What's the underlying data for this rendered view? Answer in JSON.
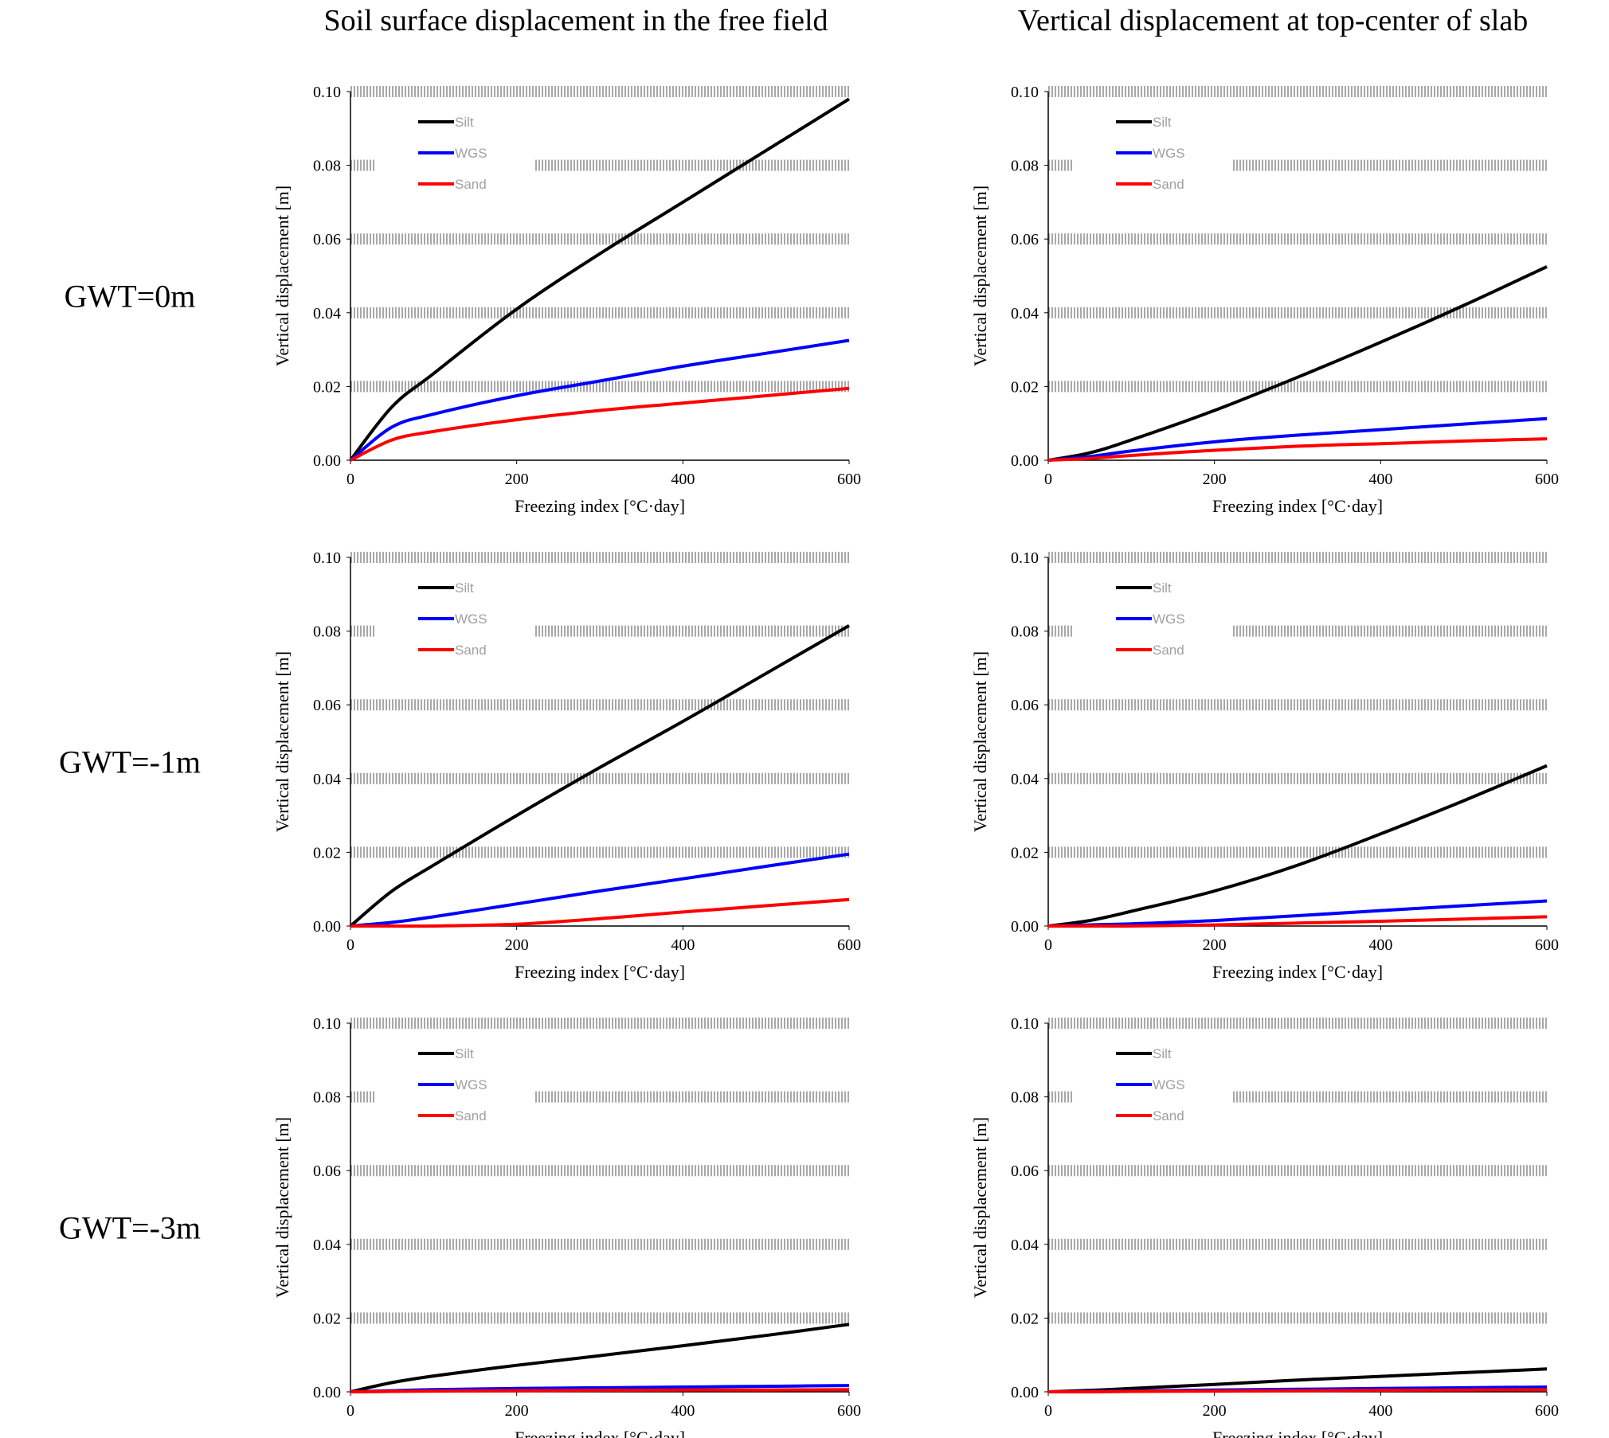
{
  "column_titles": [
    "Soil surface displacement in the free field",
    "Vertical displacement at top-center of slab"
  ],
  "row_labels": [
    "GWT=0m",
    "GWT=-1m",
    "GWT=-3m"
  ],
  "colors": {
    "Silt": "#000000",
    "WGS": "#0000ff",
    "Sand": "#ff0000",
    "grid": "#bdbdbd"
  },
  "chart_data": [
    {
      "type": "line",
      "panel": "GWT=0m / free field",
      "xlabel": "Freezing index [°C·day]",
      "ylabel": "Vertical displacement [m]",
      "xlim": [
        0,
        600
      ],
      "ylim": [
        0,
        0.1
      ],
      "xticks": [
        "0",
        "200",
        "400",
        "600"
      ],
      "yticks": [
        "0.00",
        "0.02",
        "0.04",
        "0.06",
        "0.08",
        "0.10"
      ],
      "grid": "horizontal",
      "legend_position": "top-left",
      "x": [
        0,
        50,
        100,
        200,
        300,
        400,
        500,
        600
      ],
      "series": [
        {
          "name": "Silt",
          "values": [
            0,
            0.0145,
            0.0235,
            0.041,
            0.056,
            0.07,
            0.084,
            0.098
          ]
        },
        {
          "name": "WGS",
          "values": [
            0,
            0.009,
            0.0125,
            0.0175,
            0.0215,
            0.0255,
            0.029,
            0.0325
          ]
        },
        {
          "name": "Sand",
          "values": [
            0,
            0.0055,
            0.0078,
            0.011,
            0.0135,
            0.0155,
            0.0175,
            0.0195
          ]
        }
      ]
    },
    {
      "type": "line",
      "panel": "GWT=0m / slab",
      "xlabel": "Freezing index [°C·day]",
      "ylabel": "Vertical displacement [m]",
      "xlim": [
        0,
        600
      ],
      "ylim": [
        0,
        0.1
      ],
      "xticks": [
        "0",
        "200",
        "400",
        "600"
      ],
      "yticks": [
        "0.00",
        "0.02",
        "0.04",
        "0.06",
        "0.08",
        "0.10"
      ],
      "grid": "horizontal",
      "legend_position": "top-left",
      "x": [
        0,
        50,
        100,
        200,
        300,
        400,
        500,
        600
      ],
      "series": [
        {
          "name": "Silt",
          "values": [
            0,
            0.002,
            0.0055,
            0.0135,
            0.0225,
            0.032,
            0.042,
            0.0525
          ]
        },
        {
          "name": "WGS",
          "values": [
            0,
            0.001,
            0.0025,
            0.005,
            0.0068,
            0.0083,
            0.0098,
            0.0113
          ]
        },
        {
          "name": "Sand",
          "values": [
            0,
            0.0005,
            0.0013,
            0.0027,
            0.0038,
            0.0045,
            0.0052,
            0.0058
          ]
        }
      ]
    },
    {
      "type": "line",
      "panel": "GWT=-1m / free field",
      "xlabel": "Freezing index [°C·day]",
      "ylabel": "Vertical displacement [m]",
      "xlim": [
        0,
        600
      ],
      "ylim": [
        0,
        0.1
      ],
      "xticks": [
        "0",
        "200",
        "400",
        "600"
      ],
      "yticks": [
        "0.00",
        "0.02",
        "0.04",
        "0.06",
        "0.08",
        "0.10"
      ],
      "grid": "horizontal",
      "legend_position": "top-left",
      "x": [
        0,
        50,
        100,
        200,
        300,
        400,
        500,
        600
      ],
      "series": [
        {
          "name": "Silt",
          "values": [
            0,
            0.0095,
            0.0165,
            0.03,
            0.043,
            0.0555,
            0.0685,
            0.0815
          ]
        },
        {
          "name": "WGS",
          "values": [
            0,
            0.001,
            0.0025,
            0.006,
            0.0095,
            0.0128,
            0.0162,
            0.0195
          ]
        },
        {
          "name": "Sand",
          "values": [
            0,
            0,
            0,
            0.0005,
            0.002,
            0.0038,
            0.0055,
            0.0072
          ]
        }
      ]
    },
    {
      "type": "line",
      "panel": "GWT=-1m / slab",
      "xlabel": "Freezing index [°C·day]",
      "ylabel": "Vertical displacement [m]",
      "xlim": [
        0,
        600
      ],
      "ylim": [
        0,
        0.1
      ],
      "xticks": [
        "0",
        "200",
        "400",
        "600"
      ],
      "yticks": [
        "0.00",
        "0.02",
        "0.04",
        "0.06",
        "0.08",
        "0.10"
      ],
      "grid": "horizontal",
      "legend_position": "top-left",
      "x": [
        0,
        50,
        100,
        200,
        300,
        400,
        500,
        600
      ],
      "series": [
        {
          "name": "Silt",
          "values": [
            0,
            0.0015,
            0.004,
            0.0095,
            0.0165,
            0.025,
            0.034,
            0.0435
          ]
        },
        {
          "name": "WGS",
          "values": [
            0,
            0.0003,
            0.0006,
            0.0015,
            0.0028,
            0.0042,
            0.0055,
            0.0068
          ]
        },
        {
          "name": "Sand",
          "values": [
            0,
            0,
            0,
            0.0003,
            0.0008,
            0.0013,
            0.0019,
            0.0025
          ]
        }
      ]
    },
    {
      "type": "line",
      "panel": "GWT=-3m / free field",
      "xlabel": "Freezing index [°C·day]",
      "ylabel": "Vertical displacement [m]",
      "xlim": [
        0,
        600
      ],
      "ylim": [
        0,
        0.1
      ],
      "xticks": [
        "0",
        "200",
        "400",
        "600"
      ],
      "yticks": [
        "0.00",
        "0.02",
        "0.04",
        "0.06",
        "0.08",
        "0.10"
      ],
      "grid": "horizontal",
      "legend_position": "top-left",
      "x": [
        0,
        50,
        100,
        200,
        300,
        400,
        500,
        600
      ],
      "series": [
        {
          "name": "Silt",
          "values": [
            0,
            0.0025,
            0.0043,
            0.0072,
            0.0098,
            0.0125,
            0.0153,
            0.0183
          ]
        },
        {
          "name": "WGS",
          "values": [
            0,
            0.0003,
            0.0006,
            0.0009,
            0.0011,
            0.0013,
            0.0015,
            0.0017
          ]
        },
        {
          "name": "Sand",
          "values": [
            0,
            0.0001,
            0.0002,
            0.0003,
            0.0004,
            0.0005,
            0.0005,
            0.0006
          ]
        }
      ]
    },
    {
      "type": "line",
      "panel": "GWT=-3m / slab",
      "xlabel": "Freezing index [°C·day]",
      "ylabel": "Vertical displacement [m]",
      "xlim": [
        0,
        600
      ],
      "ylim": [
        0,
        0.1
      ],
      "xticks": [
        "0",
        "200",
        "400",
        "600"
      ],
      "yticks": [
        "0.00",
        "0.02",
        "0.04",
        "0.06",
        "0.08",
        "0.10"
      ],
      "grid": "horizontal",
      "legend_position": "top-left",
      "x": [
        0,
        50,
        100,
        200,
        300,
        400,
        500,
        600
      ],
      "series": [
        {
          "name": "Silt",
          "values": [
            0,
            0.0004,
            0.0009,
            0.002,
            0.0032,
            0.0042,
            0.0052,
            0.0062
          ]
        },
        {
          "name": "WGS",
          "values": [
            0,
            0.0001,
            0.0002,
            0.0005,
            0.0007,
            0.0009,
            0.0011,
            0.0013
          ]
        },
        {
          "name": "Sand",
          "values": [
            0,
            0,
            0.0001,
            0.0002,
            0.0003,
            0.0004,
            0.0005,
            0.0006
          ]
        }
      ]
    }
  ]
}
